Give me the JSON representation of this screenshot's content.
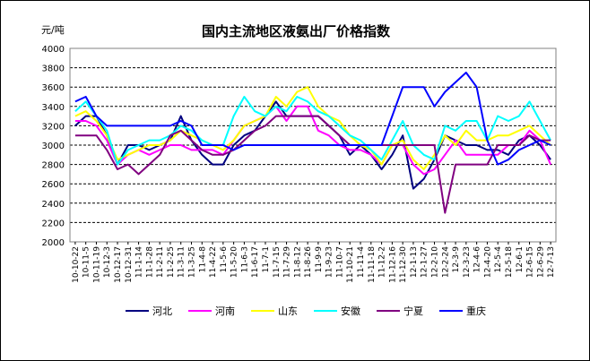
{
  "chart_data": {
    "type": "line",
    "title": "国内主流地区液氨出厂价格指数",
    "ylabel": "元/吨",
    "xlabel": "",
    "ylim": [
      2000,
      4000
    ],
    "yticks": [
      2000,
      2200,
      2400,
      2600,
      2800,
      3000,
      3200,
      3400,
      3600,
      3800,
      4000
    ],
    "grid": "horizontal-dashed",
    "legend_position": "bottom",
    "categories": [
      "10-10-22",
      "10-11-5",
      "10-11-19",
      "10-12-3",
      "10-12-17",
      "10-12-31",
      "11-1-14",
      "11-1-28",
      "11-2-11",
      "11-2-25",
      "11-3-11",
      "11-3-25",
      "11-4-8",
      "11-4-22",
      "11-5-6",
      "11-5-20",
      "11-6-3",
      "11-6-17",
      "11-7-1",
      "11-7-15",
      "11-7-29",
      "11-8-12",
      "11-8-26",
      "11-9-9",
      "11-9-23",
      "11-10-7",
      "11-10-21",
      "11-11-4",
      "11-11-18",
      "11-12-2",
      "11-12-16",
      "11-12-30",
      "12-1-13",
      "12-1-27",
      "12-2-10",
      "12-2-24",
      "12-3-9",
      "12-3-23",
      "12-4-6",
      "12-4-20",
      "12-5-4",
      "12-5-18",
      "12-6-1",
      "12-6-15",
      "12-6-29",
      "12-7-13"
    ],
    "series": [
      {
        "name": "河北",
        "color": "#000080",
        "values": [
          3200,
          3300,
          3300,
          3100,
          2800,
          3000,
          3000,
          2950,
          3000,
          3050,
          3300,
          3050,
          2900,
          2800,
          2800,
          3000,
          3100,
          3150,
          3300,
          3450,
          3300,
          3300,
          3300,
          3300,
          3200,
          3100,
          2900,
          3000,
          2900,
          2750,
          2900,
          3100,
          2550,
          2650,
          2850,
          3100,
          3050,
          3000,
          3000,
          2950,
          2950,
          2900,
          3050,
          3100,
          3000,
          2850
        ]
      },
      {
        "name": "河南",
        "color": "#ff00ff",
        "values": [
          3250,
          3250,
          3200,
          3050,
          2800,
          2900,
          2950,
          2900,
          2950,
          3000,
          3000,
          2950,
          2950,
          2950,
          2900,
          3050,
          3200,
          3250,
          3300,
          3400,
          3250,
          3400,
          3400,
          3150,
          3100,
          3000,
          2950,
          2950,
          2900,
          2800,
          3000,
          3000,
          2800,
          2700,
          2750,
          2900,
          3050,
          2900,
          2900,
          2900,
          2900,
          3000,
          3000,
          3150,
          3050,
          2800
        ]
      },
      {
        "name": "山东",
        "color": "#ffff00",
        "values": [
          3300,
          3350,
          3250,
          3100,
          2850,
          2900,
          2950,
          3000,
          3000,
          3050,
          3150,
          3100,
          3050,
          3000,
          2950,
          3050,
          3200,
          3250,
          3300,
          3500,
          3400,
          3550,
          3600,
          3400,
          3300,
          3250,
          3100,
          3000,
          2950,
          2800,
          3000,
          3050,
          2850,
          2750,
          2900,
          3100,
          3000,
          3150,
          3050,
          3050,
          3100,
          3100,
          3150,
          3200,
          3100,
          3000
        ]
      },
      {
        "name": "安徽",
        "color": "#00ffff",
        "values": [
          3350,
          3450,
          3300,
          3150,
          2800,
          2950,
          3000,
          3050,
          3050,
          3100,
          3200,
          3150,
          3050,
          3000,
          3000,
          3300,
          3500,
          3350,
          3300,
          3400,
          3350,
          3500,
          3450,
          3350,
          3300,
          3200,
          3100,
          3050,
          2950,
          2850,
          3050,
          3250,
          3000,
          2900,
          2850,
          3200,
          3150,
          3250,
          3250,
          3050,
          3300,
          3250,
          3300,
          3450,
          3250,
          3050
        ]
      },
      {
        "name": "宁夏",
        "color": "#800080",
        "values": [
          3100,
          3100,
          3100,
          2950,
          2750,
          2800,
          2700,
          2800,
          2900,
          3100,
          3150,
          3050,
          2950,
          2900,
          2900,
          2950,
          3050,
          3150,
          3200,
          3300,
          3300,
          3300,
          3300,
          3300,
          3200,
          3100,
          3000,
          3000,
          3000,
          3000,
          3000,
          3000,
          3000,
          3000,
          3000,
          2300,
          2800,
          2800,
          2800,
          2800,
          3000,
          3000,
          3000,
          3100,
          3050,
          3050
        ]
      },
      {
        "name": "重庆",
        "color": "#0000ff",
        "values": [
          3450,
          3500,
          3300,
          3200,
          3200,
          3200,
          3200,
          3200,
          3200,
          3200,
          3250,
          3200,
          3000,
          3000,
          3000,
          2950,
          3000,
          3000,
          3000,
          3000,
          3000,
          3000,
          3000,
          3000,
          3000,
          3000,
          3000,
          3000,
          3000,
          3000,
          3300,
          3600,
          3600,
          3600,
          3400,
          3550,
          3650,
          3750,
          3600,
          3050,
          2800,
          2850,
          2950,
          3000,
          3050,
          3000
        ]
      }
    ]
  }
}
